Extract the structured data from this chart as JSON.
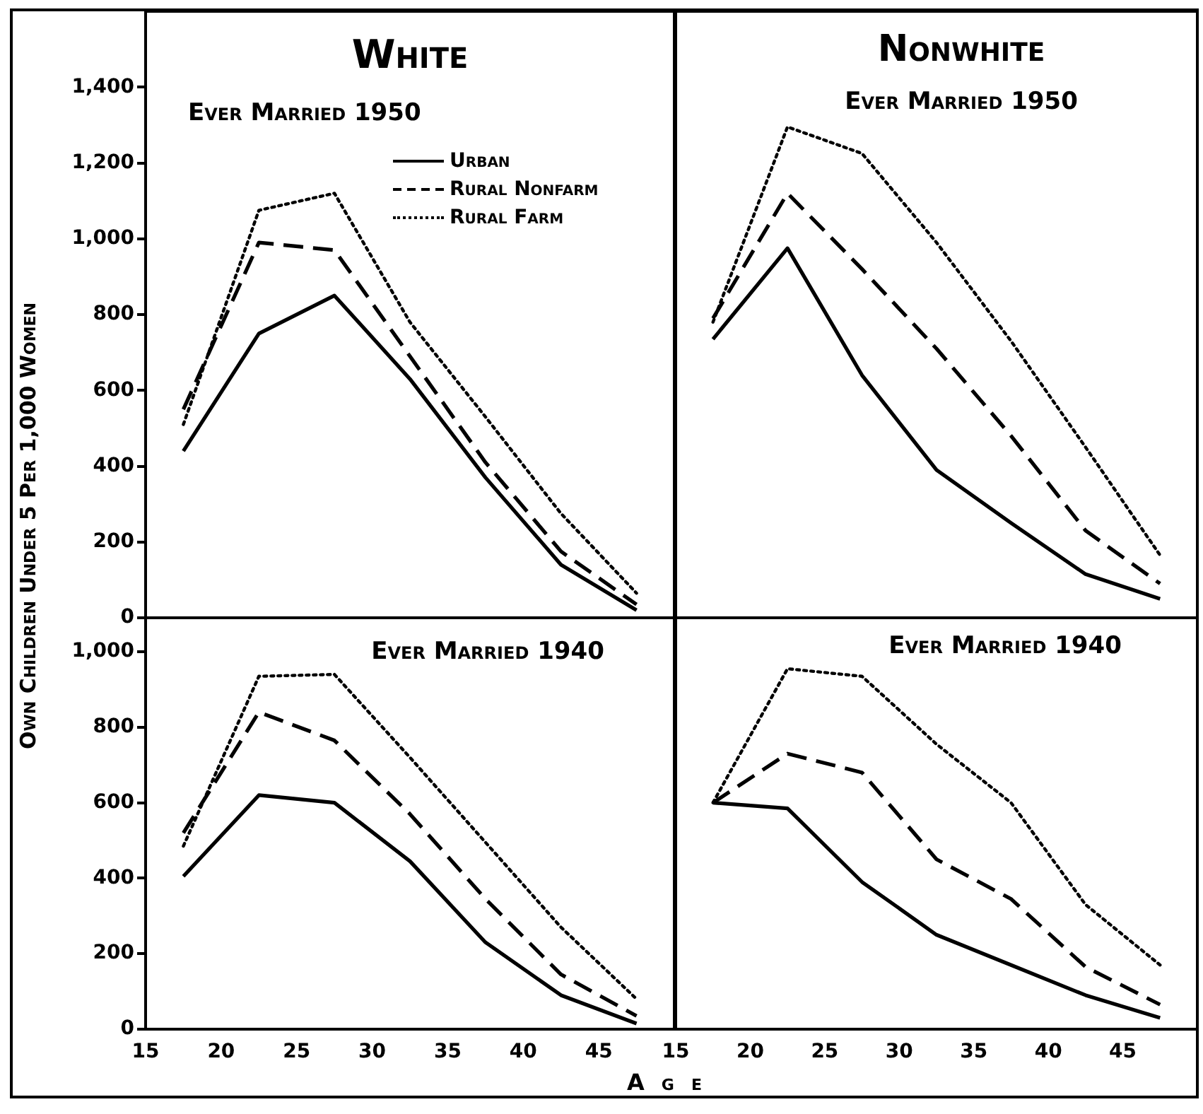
{
  "chart_data": [
    {
      "type": "line",
      "title": "White",
      "subtitle": "Ever Married 1950",
      "ylabel": "Own Children Under 5 Per 1,000 Women",
      "legend": "top right",
      "tick_labels": "y",
      "x": [
        17.5,
        22.5,
        27.5,
        32.5,
        37.5,
        42.5,
        47.5
      ],
      "xlim": [
        15,
        50
      ],
      "ylim": [
        0,
        1600
      ],
      "yticks": [
        0,
        200,
        400,
        600,
        800,
        {
          "value": 1000,
          "label": "1,000"
        },
        {
          "value": 1200,
          "label": "1,200"
        },
        {
          "value": 1400,
          "label": "1,400"
        }
      ],
      "series": [
        {
          "name": "Urban",
          "color": "#000000",
          "line_style": "solid",
          "values": [
            440,
            750,
            850,
            630,
            370,
            140,
            20
          ]
        },
        {
          "name": "Rural Nonfarm",
          "color": "#000000",
          "line_style": "dashed",
          "values": [
            550,
            990,
            970,
            690,
            410,
            175,
            35
          ]
        },
        {
          "name": "Rural Farm",
          "color": "#000000",
          "line_style": "dotted",
          "values": [
            510,
            1075,
            1120,
            780,
            530,
            275,
            65
          ]
        }
      ]
    },
    {
      "type": "line",
      "title": "Nonwhite",
      "subtitle": "Ever Married 1950",
      "tick_labels": false,
      "x": [
        17.5,
        22.5,
        27.5,
        32.5,
        37.5,
        42.5,
        47.5
      ],
      "xlim": [
        15,
        50
      ],
      "ylim": [
        0,
        1600
      ],
      "series": [
        {
          "color": "#000000",
          "line_style": "solid",
          "values": [
            735,
            975,
            640,
            390,
            250,
            115,
            50
          ]
        },
        {
          "color": "#000000",
          "line_style": "dashed",
          "values": [
            790,
            1120,
            920,
            710,
            480,
            230,
            90
          ]
        },
        {
          "color": "#000000",
          "line_style": "dotted",
          "values": [
            780,
            1295,
            1225,
            990,
            730,
            450,
            165
          ]
        }
      ]
    },
    {
      "type": "line",
      "title": "Ever Married 1940",
      "xlabel": "Age",
      "x": [
        17.5,
        22.5,
        27.5,
        32.5,
        37.5,
        42.5,
        47.5
      ],
      "xlim": [
        15,
        50
      ],
      "xticks": [
        15,
        20,
        25,
        30,
        35,
        40,
        45
      ],
      "ylim": [
        0,
        1090
      ],
      "yticks": [
        0,
        200,
        400,
        600,
        800,
        {
          "value": 1000,
          "label": "1,000"
        }
      ],
      "series": [
        {
          "color": "#000000",
          "line_style": "solid",
          "values": [
            405,
            620,
            600,
            445,
            230,
            90,
            15
          ]
        },
        {
          "color": "#000000",
          "line_style": "dashed",
          "values": [
            520,
            840,
            765,
            570,
            345,
            145,
            35
          ]
        },
        {
          "color": "#000000",
          "line_style": "dotted",
          "values": [
            485,
            935,
            940,
            720,
            495,
            270,
            80
          ]
        }
      ]
    },
    {
      "type": "line",
      "title": "Ever Married 1940",
      "tick_labels": "x",
      "x": [
        17.5,
        22.5,
        27.5,
        32.5,
        37.5,
        42.5,
        47.5
      ],
      "xlim": [
        15,
        50
      ],
      "xticks": [
        15,
        20,
        25,
        30,
        35,
        40,
        45
      ],
      "ylim": [
        0,
        1090
      ],
      "series": [
        {
          "color": "#000000",
          "line_style": "solid",
          "values": [
            600,
            585,
            390,
            250,
            170,
            90,
            30
          ]
        },
        {
          "color": "#000000",
          "line_style": "dashed",
          "values": [
            600,
            730,
            680,
            450,
            345,
            165,
            65
          ]
        },
        {
          "color": "#000000",
          "line_style": "dotted",
          "values": [
            600,
            955,
            935,
            755,
            600,
            330,
            170
          ]
        }
      ]
    }
  ]
}
